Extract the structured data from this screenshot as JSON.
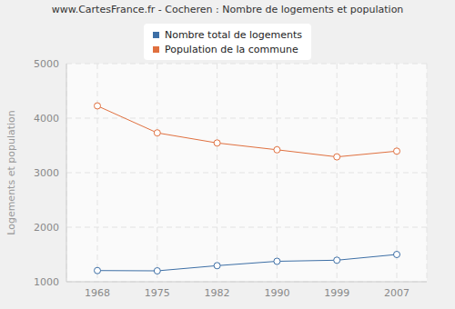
{
  "chart_data": {
    "type": "line",
    "title": "www.CartesFrance.fr - Cocheren : Nombre de logements et population",
    "y_label": "Logements et population",
    "categories": [
      "1968",
      "1975",
      "1982",
      "1990",
      "1999",
      "2007"
    ],
    "series": [
      {
        "name": "Nombre total de logements",
        "color": "#3d6fa6",
        "values": [
          1205,
          1200,
          1295,
          1375,
          1395,
          1500
        ],
        "marker": "circle"
      },
      {
        "name": "Population de la commune",
        "color": "#e0703f",
        "values": [
          4225,
          3730,
          3545,
          3420,
          3290,
          3395
        ],
        "marker": "circle"
      }
    ],
    "ylim": [
      1000,
      5000
    ],
    "yticks": [
      1000,
      2000,
      3000,
      4000,
      5000
    ],
    "grid": true,
    "legend": "top"
  }
}
